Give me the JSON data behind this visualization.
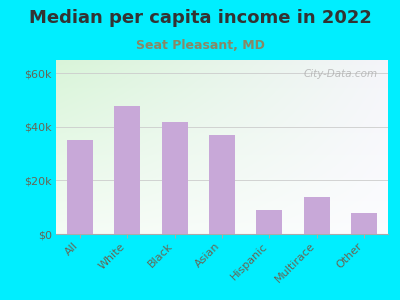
{
  "title": "Median per capita income in 2022",
  "subtitle": "Seat Pleasant, MD",
  "categories": [
    "All",
    "White",
    "Black",
    "Asian",
    "Hispanic",
    "Multirace",
    "Other"
  ],
  "values": [
    35000,
    48000,
    42000,
    37000,
    9000,
    14000,
    8000
  ],
  "bar_color": "#c8a8d8",
  "background_outer": "#00eeff",
  "title_color": "#333333",
  "subtitle_color": "#888866",
  "tick_label_color": "#666655",
  "ytick_labels": [
    "$0",
    "$20k",
    "$40k",
    "$60k"
  ],
  "ytick_values": [
    0,
    20000,
    40000,
    60000
  ],
  "ylim": [
    0,
    65000
  ],
  "watermark": "City-Data.com",
  "title_fontsize": 13,
  "subtitle_fontsize": 9,
  "tick_fontsize": 8
}
